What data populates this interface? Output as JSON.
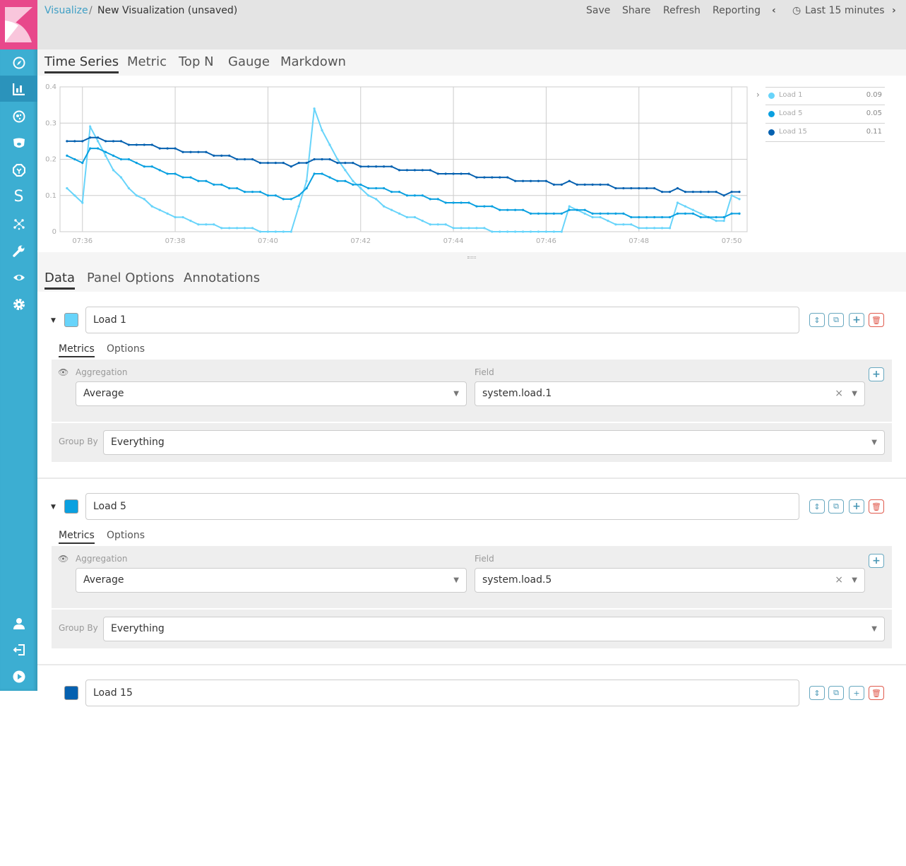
{
  "colors": {
    "sidebar": "#3caed2",
    "logo": "#e8488b",
    "load1": "#68d4fa",
    "load5": "#0aa0e0",
    "load15": "#0561b0"
  },
  "sidebar": {
    "items": [
      {
        "icon": "compass-icon",
        "label": "Discover"
      },
      {
        "icon": "bar-chart-icon",
        "label": "Visualize",
        "active": true
      },
      {
        "icon": "dashboard-icon",
        "label": "Dashboard"
      },
      {
        "icon": "timelion-icon",
        "label": "Timelion"
      },
      {
        "icon": "ml-icon",
        "label": "Machine Learning"
      },
      {
        "icon": "s-icon",
        "label": "S"
      },
      {
        "icon": "graph-icon",
        "label": "Graph"
      },
      {
        "icon": "wrench-icon",
        "label": "Dev Tools"
      },
      {
        "icon": "eye-icon",
        "label": "Monitoring"
      },
      {
        "icon": "gear-icon",
        "label": "Management"
      }
    ],
    "bottom": [
      {
        "icon": "user-icon"
      },
      {
        "icon": "logout-icon"
      },
      {
        "icon": "play-icon"
      }
    ]
  },
  "header": {
    "breadcrumb_root": "Visualize",
    "separator": "/",
    "title": "New Visualization (unsaved)",
    "menu": [
      "Save",
      "Share",
      "Refresh",
      "Reporting"
    ],
    "time_range": "Last 15 minutes"
  },
  "vis_tabs": [
    "Time Series",
    "Metric",
    "Top N",
    "Gauge",
    "Markdown"
  ],
  "data_tabs": [
    "Data",
    "Panel Options",
    "Annotations"
  ],
  "legend": [
    {
      "name": "Load 1",
      "value": "0.09"
    },
    {
      "name": "Load 5",
      "value": "0.05"
    },
    {
      "name": "Load 15",
      "value": "0.11"
    }
  ],
  "series": [
    {
      "label": "Load 1",
      "color": "#68d4fa",
      "tabs": [
        "Metrics",
        "Options"
      ],
      "aggregation_label": "Aggregation",
      "aggregation": "Average",
      "field_label": "Field",
      "field": "system.load.1",
      "group_by_label": "Group By",
      "group_by": "Everything"
    },
    {
      "label": "Load 5",
      "color": "#0aa0e0",
      "tabs": [
        "Metrics",
        "Options"
      ],
      "aggregation_label": "Aggregation",
      "aggregation": "Average",
      "field_label": "Field",
      "field": "system.load.5",
      "group_by_label": "Group By",
      "group_by": "Everything"
    },
    {
      "label": "Load 15",
      "color": "#0561b0"
    }
  ],
  "chart_data": {
    "type": "line",
    "x_start": "07:35:40",
    "x_step_seconds": 10,
    "xlim": [
      "07:35:31",
      "07:50:20"
    ],
    "ylim": [
      0,
      0.4
    ],
    "yticks": [
      "0",
      "0.1",
      "0.2",
      "0.3",
      "0.4"
    ],
    "xticks": [
      "07:36",
      "07:38",
      "07:40",
      "07:42",
      "07:44",
      "07:46",
      "07:48",
      "07:50"
    ],
    "grid": true,
    "legend_position": "right",
    "series": [
      {
        "name": "Load 1",
        "color": "#68d4fa",
        "values": [
          0.12,
          0.1,
          0.08,
          0.29,
          0.25,
          0.21,
          0.17,
          0.15,
          0.12,
          0.1,
          0.09,
          0.07,
          0.06,
          0.05,
          0.04,
          0.04,
          0.03,
          0.02,
          0.02,
          0.02,
          0.01,
          0.01,
          0.01,
          0.01,
          0.01,
          0,
          0,
          0,
          0,
          0,
          0.07,
          0.14,
          0.34,
          0.28,
          0.24,
          0.2,
          0.17,
          0.14,
          0.12,
          0.1,
          0.09,
          0.07,
          0.06,
          0.05,
          0.04,
          0.04,
          0.03,
          0.02,
          0.02,
          0.02,
          0.01,
          0.01,
          0.01,
          0.01,
          0.01,
          0,
          0,
          0,
          0,
          0,
          0,
          0,
          0,
          0,
          0,
          0.07,
          0.06,
          0.05,
          0.04,
          0.04,
          0.03,
          0.02,
          0.02,
          0.02,
          0.01,
          0.01,
          0.01,
          0.01,
          0.01,
          0.08,
          0.07,
          0.06,
          0.05,
          0.04,
          0.03,
          0.03,
          0.1,
          0.09
        ]
      },
      {
        "name": "Load 5",
        "color": "#0aa0e0",
        "values": [
          0.21,
          0.2,
          0.19,
          0.23,
          0.23,
          0.22,
          0.21,
          0.2,
          0.2,
          0.19,
          0.18,
          0.18,
          0.17,
          0.16,
          0.16,
          0.15,
          0.15,
          0.14,
          0.14,
          0.13,
          0.13,
          0.12,
          0.12,
          0.11,
          0.11,
          0.11,
          0.1,
          0.1,
          0.09,
          0.09,
          0.1,
          0.12,
          0.16,
          0.16,
          0.15,
          0.14,
          0.14,
          0.13,
          0.13,
          0.12,
          0.12,
          0.12,
          0.11,
          0.11,
          0.1,
          0.1,
          0.1,
          0.09,
          0.09,
          0.08,
          0.08,
          0.08,
          0.08,
          0.07,
          0.07,
          0.07,
          0.06,
          0.06,
          0.06,
          0.06,
          0.05,
          0.05,
          0.05,
          0.05,
          0.05,
          0.06,
          0.06,
          0.06,
          0.05,
          0.05,
          0.05,
          0.05,
          0.05,
          0.04,
          0.04,
          0.04,
          0.04,
          0.04,
          0.04,
          0.05,
          0.05,
          0.05,
          0.04,
          0.04,
          0.04,
          0.04,
          0.05,
          0.05
        ]
      },
      {
        "name": "Load 15",
        "color": "#0561b0",
        "values": [
          0.25,
          0.25,
          0.25,
          0.26,
          0.26,
          0.25,
          0.25,
          0.25,
          0.24,
          0.24,
          0.24,
          0.24,
          0.23,
          0.23,
          0.23,
          0.22,
          0.22,
          0.22,
          0.22,
          0.21,
          0.21,
          0.21,
          0.2,
          0.2,
          0.2,
          0.19,
          0.19,
          0.19,
          0.19,
          0.18,
          0.19,
          0.19,
          0.2,
          0.2,
          0.2,
          0.19,
          0.19,
          0.19,
          0.18,
          0.18,
          0.18,
          0.18,
          0.18,
          0.17,
          0.17,
          0.17,
          0.17,
          0.17,
          0.16,
          0.16,
          0.16,
          0.16,
          0.16,
          0.15,
          0.15,
          0.15,
          0.15,
          0.15,
          0.14,
          0.14,
          0.14,
          0.14,
          0.14,
          0.13,
          0.13,
          0.14,
          0.13,
          0.13,
          0.13,
          0.13,
          0.13,
          0.12,
          0.12,
          0.12,
          0.12,
          0.12,
          0.12,
          0.11,
          0.11,
          0.12,
          0.11,
          0.11,
          0.11,
          0.11,
          0.11,
          0.1,
          0.11,
          0.11
        ]
      }
    ]
  }
}
